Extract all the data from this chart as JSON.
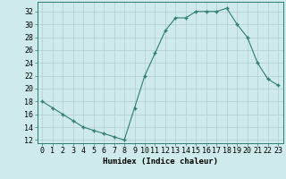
{
  "x": [
    0,
    1,
    2,
    3,
    4,
    5,
    6,
    7,
    8,
    9,
    10,
    11,
    12,
    13,
    14,
    15,
    16,
    17,
    18,
    19,
    20,
    21,
    22,
    23
  ],
  "y": [
    18,
    17,
    16,
    15,
    14,
    13.5,
    13,
    12.5,
    12,
    17,
    22,
    25.5,
    29,
    31,
    31,
    32,
    32,
    32,
    32.5,
    30,
    28,
    24,
    21.5,
    20.5
  ],
  "line_color": "#2e7d6e",
  "marker": "+",
  "marker_size": 3,
  "marker_linewidth": 1.0,
  "line_width": 0.8,
  "bg_color": "#ceeaea",
  "grid_color": "#b0cccc",
  "xlabel": "Humidex (Indice chaleur)",
  "ylabel_ticks": [
    12,
    14,
    16,
    18,
    20,
    22,
    24,
    26,
    28,
    30,
    32
  ],
  "xlim": [
    -0.5,
    23.5
  ],
  "ylim": [
    11.5,
    33.5
  ],
  "xtick_labels": [
    "0",
    "1",
    "2",
    "3",
    "4",
    "5",
    "6",
    "7",
    "8",
    "9",
    "10",
    "11",
    "12",
    "13",
    "14",
    "15",
    "16",
    "17",
    "18",
    "19",
    "20",
    "21",
    "22",
    "23"
  ],
  "xlabel_fontsize": 6.5,
  "tick_fontsize": 6.0
}
